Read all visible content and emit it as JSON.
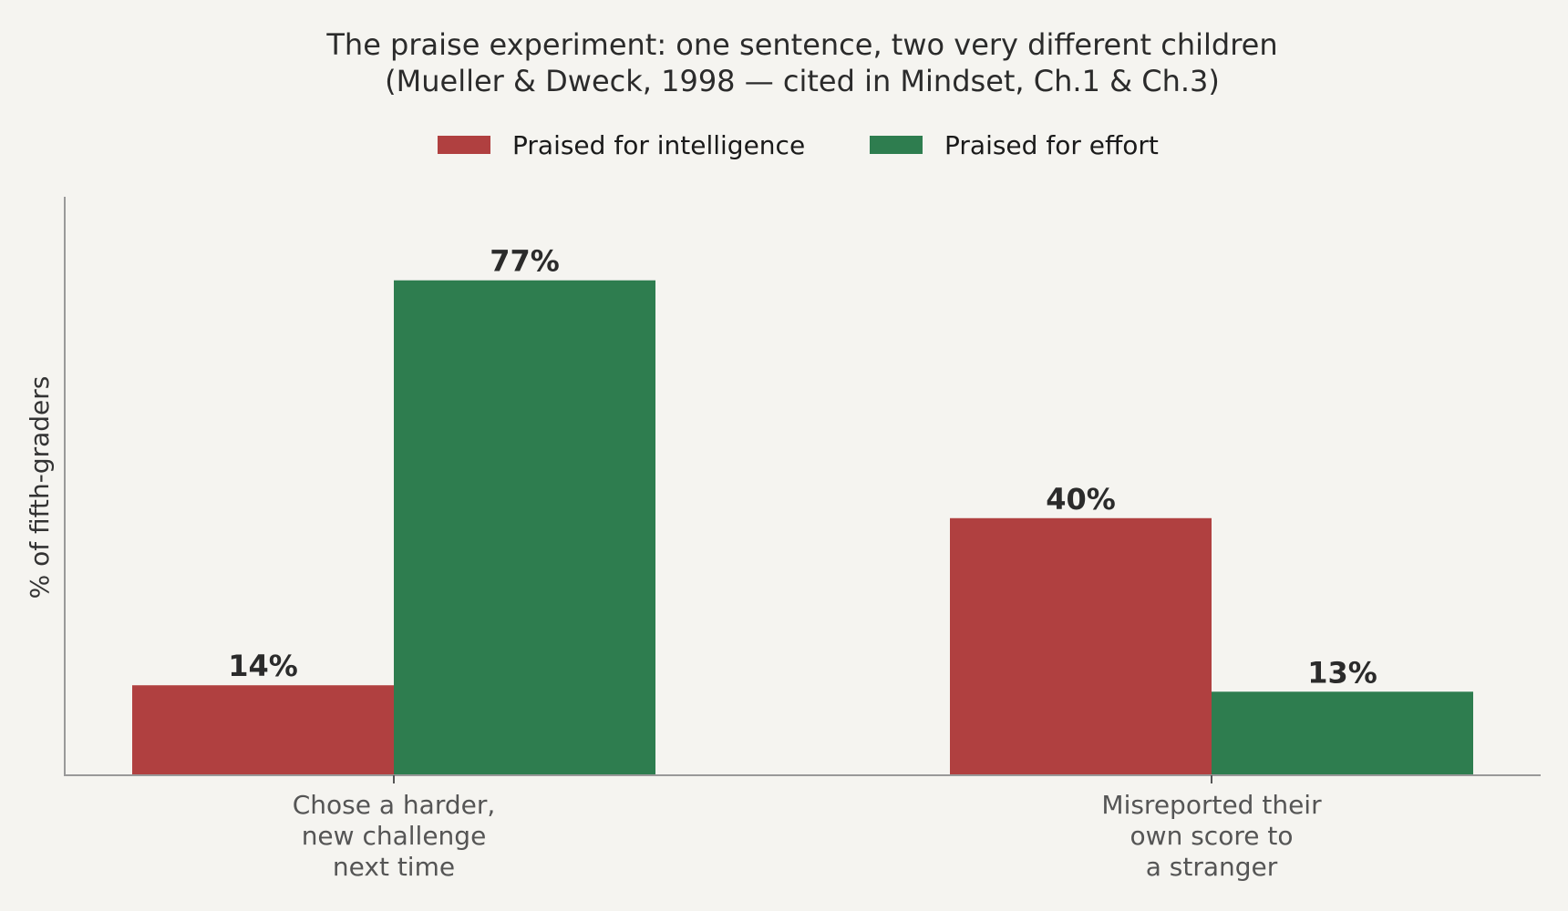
{
  "chart_data": {
    "type": "bar",
    "title": [
      "The praise experiment: one sentence, two very different children",
      "(Mueller & Dweck, 1998 — cited in Mindset, Ch.1 & Ch.3)"
    ],
    "ylabel": "% of fifth-graders",
    "xlabel": "",
    "categories": [
      [
        "Chose a harder,",
        "new challenge",
        "next time"
      ],
      [
        "Misreported their",
        "own score to",
        "a stranger"
      ]
    ],
    "series": [
      {
        "name": "Praised for intelligence",
        "values": [
          14,
          40
        ],
        "labels": [
          "14%",
          "40%"
        ],
        "color": "#b04040"
      },
      {
        "name": "Praised for effort",
        "values": [
          77,
          13
        ],
        "labels": [
          "77%",
          "13%"
        ],
        "color": "#2e7d4f"
      }
    ],
    "ylim": [
      0,
      90
    ],
    "grid": false,
    "legend": "top-center",
    "y_ticks_visible": false
  }
}
